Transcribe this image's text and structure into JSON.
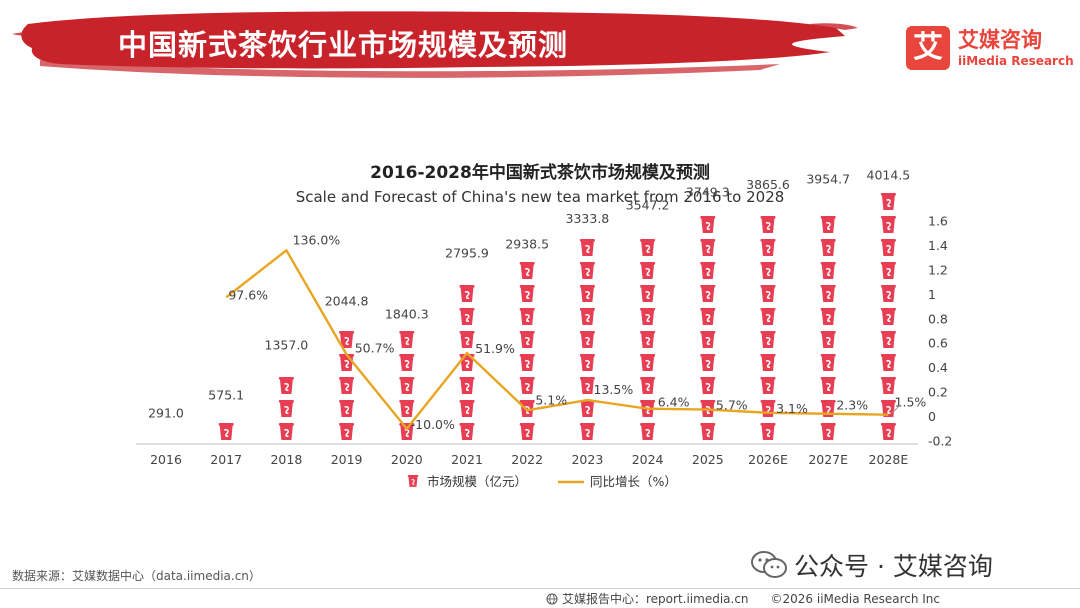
{
  "header": {
    "title": "中国新式茶饮行业市场规模及预测",
    "logo_mark": "艾",
    "logo_cn": "艾媒咨询",
    "logo_en": "iiMedia Research"
  },
  "colors": {
    "brand_red": "#e8453c",
    "banner_red": "#c8232b",
    "bar_red": "#e83e54",
    "line_orange": "#e8a521"
  },
  "chart_data": {
    "type": "bar+line",
    "title": "2016-2028年中国新式茶饮市场规模及预测",
    "subtitle": "Scale and Forecast of China's new tea market from 2016 to 2028",
    "categories": [
      "2016",
      "2017",
      "2018",
      "2019",
      "2020",
      "2021",
      "2022",
      "2023",
      "2024",
      "2025",
      "2026E",
      "2027E",
      "2028E"
    ],
    "series": [
      {
        "name": "市场规模（亿元）",
        "type": "pictorial-bar",
        "axis": "left",
        "values": [
          291.0,
          575.1,
          1357.0,
          2044.8,
          1840.3,
          2795.9,
          2938.5,
          3333.8,
          3547.2,
          3749.3,
          3865.6,
          3954.7,
          4014.5
        ],
        "labels": [
          "291.0",
          "575.1",
          "1357.0",
          "2044.8",
          "1840.3",
          "2795.9",
          "2938.5",
          "3333.8",
          "3547.2",
          "3749.3",
          "3865.6",
          "3954.7",
          "4014.5"
        ]
      },
      {
        "name": "同比增长（%）",
        "type": "line",
        "axis": "right",
        "values": [
          null,
          0.976,
          1.36,
          0.507,
          -0.1,
          0.519,
          0.051,
          0.135,
          0.064,
          0.057,
          0.031,
          0.023,
          0.015
        ],
        "labels": [
          "",
          "97.6%",
          "136.0%",
          "50.7%",
          "-10.0%",
          "51.9%",
          "5.1%",
          "13.5%",
          "6.4%",
          "5.7%",
          "3.1%",
          "2.3%",
          "1.5%"
        ]
      }
    ],
    "y_left_range": [
      0,
      4500
    ],
    "y_right_range": [
      -0.2,
      1.6
    ],
    "y_right_ticks": [
      "1.6",
      "1.4",
      "1.2",
      "1",
      "0.8",
      "0.6",
      "0.4",
      "0.2",
      "0",
      "-0.2"
    ],
    "y_right_tick_values": [
      1.6,
      1.4,
      1.2,
      1.0,
      0.8,
      0.6,
      0.4,
      0.2,
      0,
      -0.2
    ],
    "legend": [
      {
        "label": "市场规模（亿元）",
        "kind": "cup"
      },
      {
        "label": "同比增长（%）",
        "kind": "line"
      }
    ],
    "legend_position": "bottom-center"
  },
  "footer": {
    "source": "数据来源：艾媒数据中心（data.iimedia.cn）",
    "wechat": "公众号 · 艾媒咨询",
    "report_center": "艾媒报告中心：report.iimedia.cn",
    "copyright": "©2026  iiMedia Research  Inc"
  }
}
